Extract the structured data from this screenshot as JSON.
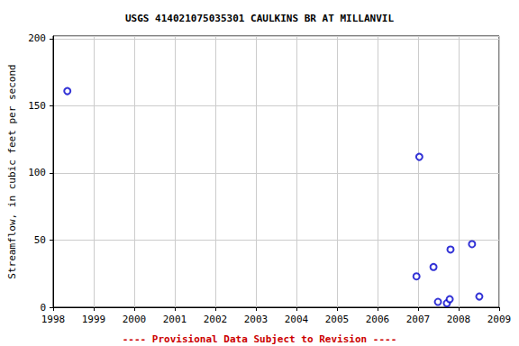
{
  "chart_data": {
    "type": "scatter",
    "title": "USGS 414021075035301 CAULKINS BR AT MILLANVIL",
    "y_label": "Streamflow, in cubic feet per second",
    "annotation": "---- Provisional Data Subject to Revision ----",
    "x": [
      1998.35,
      2006.96,
      2007.03,
      2007.38,
      2007.49,
      2007.71,
      2007.78,
      2007.8,
      2008.33,
      2008.51
    ],
    "values": [
      161,
      23,
      112,
      30,
      4,
      3,
      6,
      43,
      47,
      8
    ],
    "color": "#0000cc",
    "marker": "open_circle",
    "xlim": [
      1998,
      2009
    ],
    "xticks": [
      1998,
      1999,
      2000,
      2001,
      2002,
      2003,
      2004,
      2005,
      2006,
      2007,
      2008,
      2009
    ],
    "ylim": [
      0,
      202
    ],
    "yticks": [
      0,
      50,
      100,
      150,
      200
    ],
    "grid": true
  }
}
